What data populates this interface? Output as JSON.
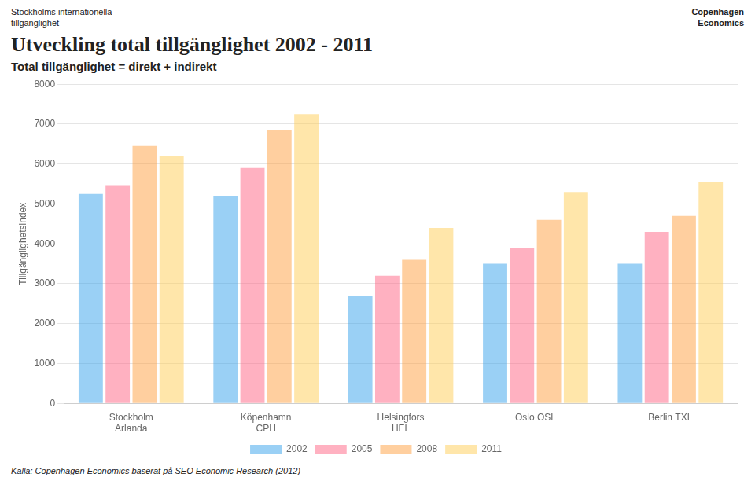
{
  "chart_data": {
    "type": "bar",
    "title": "Utveckling total tillgänglighet 2002 - 2011",
    "subtitle": "Total tillgänglighet = direkt + indirekt",
    "ylabel": "Tillgänglighetsindex",
    "annotations": [
      "Stockholms internationella",
      "tillgänglighet",
      "Copenhagen",
      "Economics",
      "Källa: Copenhagen Economics baserat på SEO Economic Research (2012)"
    ],
    "categories": [
      "Stockholm\nArlanda",
      "Köpenhamn\nCPH",
      "Helsingfors\nHEL",
      "Oslo OSL",
      "Berlin TXL"
    ],
    "series": [
      {
        "name": "2002",
        "values": [
          5250,
          5200,
          2700,
          3500,
          3500
        ]
      },
      {
        "name": "2005",
        "values": [
          5450,
          5900,
          3200,
          3900,
          4300
        ]
      },
      {
        "name": "2008",
        "values": [
          6450,
          6850,
          3600,
          4600,
          4700
        ]
      },
      {
        "name": "2011",
        "values": [
          6200,
          7250,
          4400,
          5300,
          5550
        ]
      }
    ],
    "ylim": [
      0,
      8000
    ],
    "yticks": [
      0,
      1000,
      2000,
      3000,
      4000,
      5000,
      6000,
      7000,
      8000
    ],
    "grid": true,
    "legend": "bottom"
  }
}
